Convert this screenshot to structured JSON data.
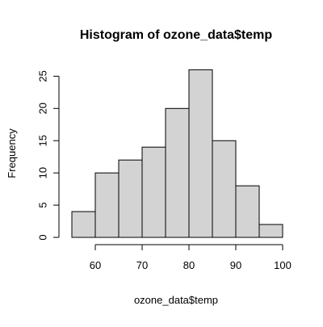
{
  "chart_data": {
    "type": "bar",
    "title": "Histogram of ozone_data$temp",
    "xlabel": "ozone_data$temp",
    "ylabel": "Frequency",
    "bins": [
      {
        "x0": 55,
        "x1": 60,
        "count": 4
      },
      {
        "x0": 60,
        "x1": 65,
        "count": 10
      },
      {
        "x0": 65,
        "x1": 70,
        "count": 12
      },
      {
        "x0": 70,
        "x1": 75,
        "count": 14
      },
      {
        "x0": 75,
        "x1": 80,
        "count": 20
      },
      {
        "x0": 80,
        "x1": 85,
        "count": 26
      },
      {
        "x0": 85,
        "x1": 90,
        "count": 15
      },
      {
        "x0": 90,
        "x1": 95,
        "count": 8
      },
      {
        "x0": 95,
        "x1": 100,
        "count": 2
      }
    ],
    "xlim": [
      55,
      100
    ],
    "ylim": [
      0,
      26
    ],
    "x_ticks": [
      60,
      70,
      80,
      90,
      100
    ],
    "y_ticks": [
      0,
      5,
      10,
      15,
      20,
      25
    ],
    "grid": false,
    "bar_fill": "#d3d3d3",
    "bar_stroke": "#000000"
  }
}
